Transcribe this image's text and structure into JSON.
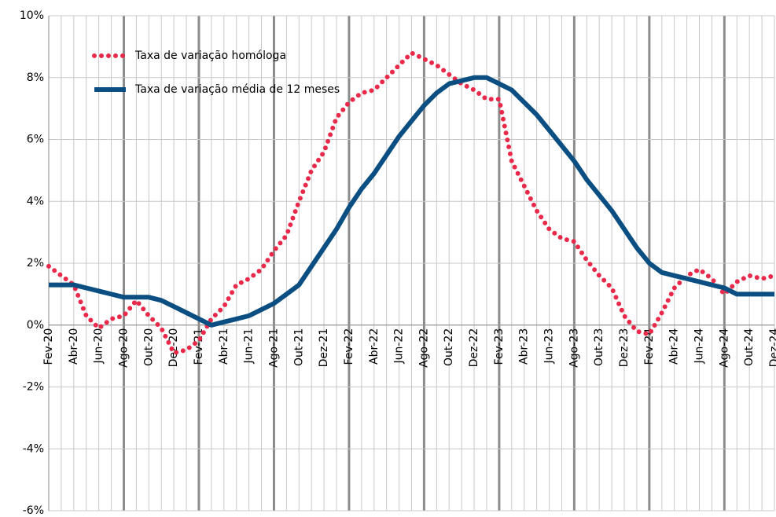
{
  "chart_data": {
    "type": "line",
    "categories": [
      "Fev-20",
      null,
      "Abr-20",
      null,
      "Jun-20",
      null,
      "Ago-20",
      null,
      "Out-20",
      null,
      "Dez-20",
      null,
      "Fev-21",
      null,
      "Abr-21",
      null,
      "Jun-21",
      null,
      "Ago-21",
      null,
      "Out-21",
      null,
      "Dez-21",
      null,
      "Fev-22",
      null,
      "Abr-22",
      null,
      "Jun-22",
      null,
      "Ago-22",
      null,
      "Out-22",
      null,
      "Dez-22",
      null,
      "Fev-23",
      null,
      "Abr-23",
      null,
      "Jun-23",
      null,
      "Ago-23",
      null,
      "Out-23",
      null,
      "Dez-23",
      null,
      "Fev-24",
      null,
      "Abr-24",
      null,
      "Jun-24",
      null,
      "Ago-24",
      null,
      "Out-24",
      null,
      "Dez-24"
    ],
    "series": [
      {
        "name": "Taxa de variação homóloga",
        "color": "#e8294a",
        "style": "dotted",
        "values": [
          1.9,
          1.6,
          1.3,
          0.3,
          -0.1,
          0.2,
          0.3,
          0.8,
          0.3,
          -0.1,
          -0.9,
          -0.8,
          -0.5,
          0.2,
          0.6,
          1.3,
          1.5,
          1.8,
          2.4,
          2.9,
          4.0,
          5.0,
          5.6,
          6.7,
          7.2,
          7.5,
          7.6,
          8.0,
          8.4,
          8.8,
          8.6,
          8.4,
          8.1,
          7.8,
          7.6,
          7.3,
          7.3,
          5.3,
          4.5,
          3.7,
          3.1,
          2.8,
          2.7,
          2.1,
          1.6,
          1.2,
          0.3,
          -0.2,
          -0.3,
          0.4,
          1.2,
          1.6,
          1.8,
          1.5,
          1.0,
          1.4,
          1.6,
          1.5,
          1.6
        ]
      },
      {
        "name": "Taxa de variação média de 12 meses",
        "color": "#0b4f82",
        "style": "solid",
        "values": [
          1.3,
          1.3,
          1.3,
          1.2,
          1.1,
          1.0,
          0.9,
          0.9,
          0.9,
          0.8,
          0.6,
          0.4,
          0.2,
          0.0,
          0.1,
          0.2,
          0.3,
          0.5,
          0.7,
          1.0,
          1.3,
          1.9,
          2.5,
          3.1,
          3.8,
          4.4,
          4.9,
          5.5,
          6.1,
          6.6,
          7.1,
          7.5,
          7.8,
          7.9,
          8.0,
          8.0,
          7.8,
          7.6,
          7.2,
          6.8,
          6.3,
          5.8,
          5.3,
          4.7,
          4.2,
          3.7,
          3.1,
          2.5,
          2.0,
          1.7,
          1.6,
          1.5,
          1.4,
          1.3,
          1.2,
          1.0,
          1.0,
          1.0,
          1.0
        ]
      }
    ],
    "ylim": [
      -6,
      10
    ],
    "yticks": [
      {
        "value": -6,
        "label": "-6%"
      },
      {
        "value": -4,
        "label": "-4%"
      },
      {
        "value": -2,
        "label": "-2%"
      },
      {
        "value": 0,
        "label": "0%"
      },
      {
        "value": 2,
        "label": "2%"
      },
      {
        "value": 4,
        "label": "4%"
      },
      {
        "value": 6,
        "label": "6%"
      },
      {
        "value": 8,
        "label": "8%"
      },
      {
        "value": 10,
        "label": "10%"
      }
    ],
    "grid": true,
    "legend": "upper-left"
  }
}
